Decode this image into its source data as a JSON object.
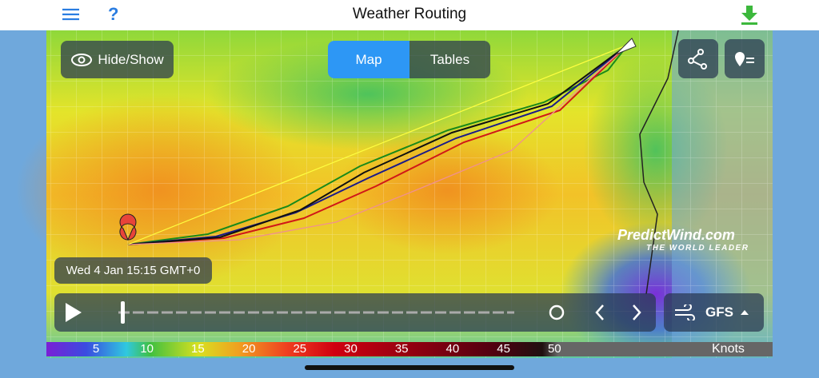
{
  "header": {
    "title": "Weather Routing"
  },
  "map": {
    "hide_show": "Hide/Show",
    "tabs": [
      "Map",
      "Tables"
    ],
    "timestamp": "Wed 4 Jan 15:15 GMT+0",
    "logo": {
      "name": "PredictWind.com",
      "tagline": "THE WORLD LEADER"
    },
    "model": "GFS"
  },
  "wind_scale": {
    "labels": [
      5,
      10,
      15,
      20,
      25,
      30,
      35,
      40,
      45,
      50
    ],
    "unit": "Knots"
  }
}
